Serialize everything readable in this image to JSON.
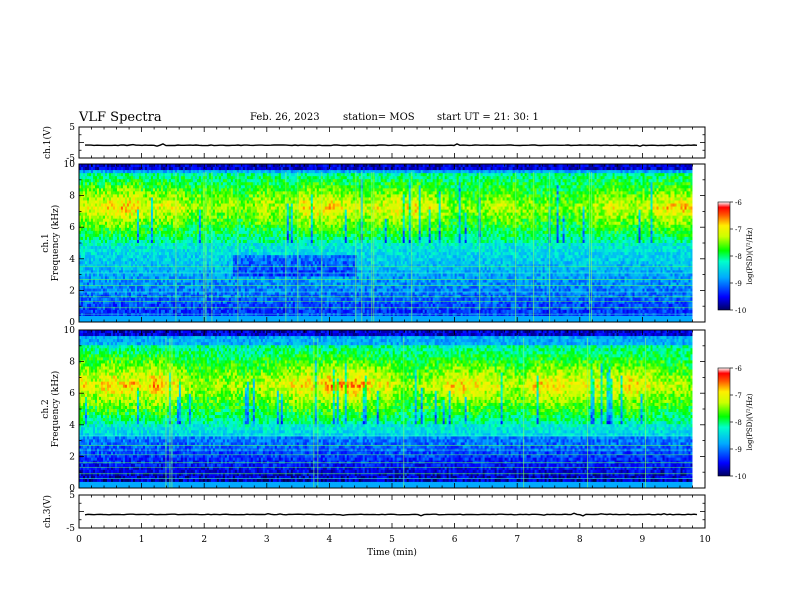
{
  "header": {
    "title": "VLF Spectra",
    "date": "Feb. 26, 2023",
    "station": "station= MOS",
    "start": "start  UT =   21: 30: 1"
  },
  "colorbar": {
    "label": "log(PSD)(V²/Hz)",
    "ticks": [
      "-6",
      "-7",
      "-8",
      "-9",
      "-10"
    ]
  },
  "chart_data": [
    {
      "type": "line",
      "name": "ch1-waveform",
      "ylabel": "ch.1(V)",
      "ylim": [
        -5,
        5
      ],
      "yticks": [
        "5",
        "-5"
      ],
      "xlim": [
        0,
        10
      ],
      "values_constant": -0.9
    },
    {
      "type": "heatmap",
      "name": "ch1-spectrogram",
      "ylabel": "ch.1\nFrequency (kHz)",
      "ylabel_line1": "ch.1",
      "ylabel_line2": "Frequency (kHz)",
      "ylim": [
        0,
        10
      ],
      "yticks": [
        "0",
        "2",
        "4",
        "6",
        "8",
        "10"
      ],
      "xlim": [
        0,
        10
      ],
      "x_data_end_min": 9.8,
      "colorbar_range": [
        -10,
        -6
      ],
      "dominant_band_khz": [
        5,
        9.5
      ],
      "band_peak_log_psd": -7
    },
    {
      "type": "heatmap",
      "name": "ch2-spectrogram",
      "ylabel_line1": "ch.2",
      "ylabel_line2": "Frequency (kHz)",
      "ylim": [
        0,
        10
      ],
      "yticks": [
        "0",
        "2",
        "4",
        "6",
        "8",
        "10"
      ],
      "xlim": [
        0,
        10
      ],
      "x_data_end_min": 9.8,
      "colorbar_range": [
        -10,
        -6
      ],
      "dominant_band_khz": [
        4,
        9
      ],
      "band_peak_log_psd": -6.8
    },
    {
      "type": "line",
      "name": "ch3-waveform",
      "ylabel": "ch.3(V)",
      "ylim": [
        -5,
        5
      ],
      "yticks": [
        "5",
        "-5"
      ],
      "xlim": [
        0,
        10
      ],
      "xlabel": "Time  (min)",
      "xticks": [
        "0",
        "1",
        "2",
        "3",
        "4",
        "5",
        "6",
        "7",
        "8",
        "9",
        "10"
      ],
      "values_constant": -0.9
    }
  ]
}
